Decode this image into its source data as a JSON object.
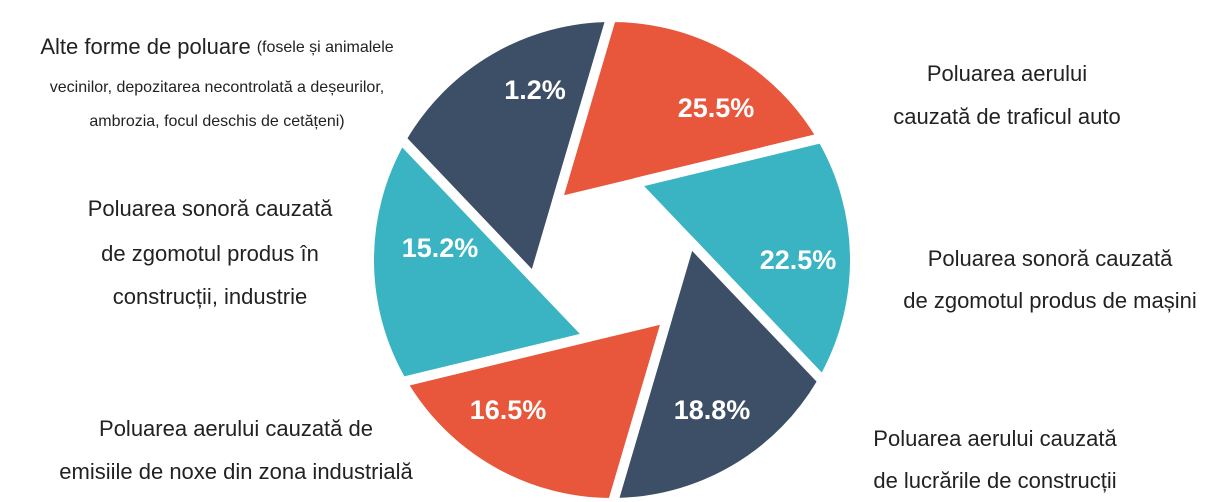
{
  "segments": [
    {
      "value_label": "1.2%",
      "caption": {
        "title": "Alte forme de poluare",
        "detail_lines": [
          "(fosele și animalele",
          "vecinilor, depozitarea necontrolată a deșeurilor,",
          "ambrozia, focul deschis de cetățeni)"
        ]
      }
    },
    {
      "value_label": "25.5%",
      "caption": {
        "lines": [
          "Poluarea aerului",
          "cauzată de traficul auto"
        ]
      }
    },
    {
      "value_label": "22.5%",
      "caption": {
        "lines": [
          "Poluarea sonoră cauzată",
          "de zgomotul produs de mașini"
        ]
      }
    },
    {
      "value_label": "18.8%",
      "caption": {
        "lines": [
          "Poluarea aerului cauzată",
          "de lucrările de construcții"
        ]
      }
    },
    {
      "value_label": "16.5%",
      "caption": {
        "lines": [
          "Poluarea aerului cauzată de",
          "emisiile de noxe din zona industrială"
        ]
      }
    },
    {
      "value_label": "15.2%",
      "caption": {
        "lines": [
          "Poluarea sonoră cauzată",
          "de zgomotul produs în",
          "construcții, industrie"
        ]
      }
    }
  ]
}
